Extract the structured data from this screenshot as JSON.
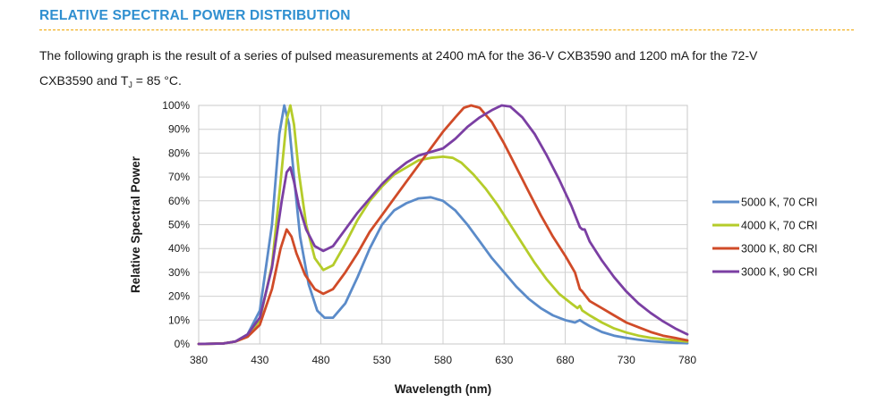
{
  "header": {
    "title": "RELATIVE SPECTRAL POWER DISTRIBUTION",
    "title_color": "#2f8fd0",
    "rule_color": "#f0a500"
  },
  "intro": {
    "line1": "The following graph is the result of a series of pulsed measurements at 2400 mA for the 36-V CXB3590 and 1200 mA for the 72-V",
    "line2_prefix": "CXB3590 and T",
    "line2_sub": "J",
    "line2_suffix": " = 85 °C."
  },
  "chart_data": {
    "type": "line",
    "xlabel": "Wavelength (nm)",
    "ylabel": "Relative Spectral Power",
    "xlim": [
      380,
      780
    ],
    "ylim": [
      0,
      100
    ],
    "x_ticks": [
      "380",
      "430",
      "480",
      "530",
      "580",
      "630",
      "680",
      "730",
      "780"
    ],
    "y_ticks": [
      "0%",
      "10%",
      "20%",
      "30%",
      "40%",
      "50%",
      "60%",
      "70%",
      "80%",
      "90%",
      "100%"
    ],
    "grid": true,
    "legend_position": "right",
    "series": [
      {
        "name": "5000 K, 70 CRI",
        "color": "#5b8bc9",
        "points": [
          [
            380,
            0
          ],
          [
            400,
            0.2
          ],
          [
            410,
            1
          ],
          [
            420,
            4
          ],
          [
            430,
            14
          ],
          [
            440,
            50
          ],
          [
            446,
            88
          ],
          [
            450,
            100
          ],
          [
            454,
            92
          ],
          [
            458,
            70
          ],
          [
            463,
            45
          ],
          [
            470,
            25
          ],
          [
            477,
            14
          ],
          [
            483,
            11
          ],
          [
            490,
            11
          ],
          [
            500,
            17
          ],
          [
            510,
            28
          ],
          [
            520,
            40
          ],
          [
            530,
            50
          ],
          [
            540,
            56
          ],
          [
            550,
            59
          ],
          [
            560,
            61
          ],
          [
            570,
            61.5
          ],
          [
            580,
            60
          ],
          [
            590,
            56
          ],
          [
            600,
            50
          ],
          [
            610,
            43
          ],
          [
            620,
            36
          ],
          [
            630,
            30
          ],
          [
            640,
            24
          ],
          [
            650,
            19
          ],
          [
            660,
            15
          ],
          [
            670,
            12
          ],
          [
            680,
            10
          ],
          [
            688,
            9
          ],
          [
            692,
            10
          ],
          [
            695,
            9
          ],
          [
            700,
            7.5
          ],
          [
            710,
            5
          ],
          [
            720,
            3.5
          ],
          [
            730,
            2.5
          ],
          [
            740,
            1.8
          ],
          [
            750,
            1.2
          ],
          [
            760,
            0.8
          ],
          [
            770,
            0.5
          ],
          [
            780,
            0.3
          ]
        ]
      },
      {
        "name": "4000 K, 70 CRI",
        "color": "#b5cc2a",
        "points": [
          [
            380,
            0
          ],
          [
            400,
            0.2
          ],
          [
            410,
            1
          ],
          [
            420,
            3
          ],
          [
            430,
            10
          ],
          [
            440,
            33
          ],
          [
            447,
            68
          ],
          [
            452,
            94
          ],
          [
            455,
            100
          ],
          [
            458,
            92
          ],
          [
            462,
            72
          ],
          [
            468,
            50
          ],
          [
            475,
            36
          ],
          [
            482,
            31
          ],
          [
            490,
            33
          ],
          [
            500,
            42
          ],
          [
            510,
            52
          ],
          [
            520,
            60
          ],
          [
            530,
            66
          ],
          [
            540,
            71
          ],
          [
            550,
            74
          ],
          [
            560,
            77
          ],
          [
            570,
            78
          ],
          [
            580,
            78.5
          ],
          [
            588,
            78
          ],
          [
            595,
            76
          ],
          [
            605,
            71
          ],
          [
            615,
            65
          ],
          [
            625,
            58
          ],
          [
            635,
            50
          ],
          [
            645,
            42
          ],
          [
            655,
            34
          ],
          [
            665,
            27
          ],
          [
            675,
            21
          ],
          [
            685,
            17
          ],
          [
            690,
            15
          ],
          [
            692,
            16
          ],
          [
            694,
            14
          ],
          [
            700,
            12
          ],
          [
            710,
            9
          ],
          [
            720,
            6.5
          ],
          [
            730,
            4.8
          ],
          [
            740,
            3.5
          ],
          [
            750,
            2.6
          ],
          [
            760,
            2
          ],
          [
            770,
            1.5
          ],
          [
            780,
            1
          ]
        ]
      },
      {
        "name": "3000 K, 80 CRI",
        "color": "#d04b28",
        "points": [
          [
            380,
            0
          ],
          [
            400,
            0.2
          ],
          [
            410,
            1
          ],
          [
            420,
            3
          ],
          [
            430,
            8
          ],
          [
            440,
            23
          ],
          [
            447,
            40
          ],
          [
            452,
            48
          ],
          [
            456,
            45
          ],
          [
            460,
            38
          ],
          [
            467,
            29
          ],
          [
            475,
            23
          ],
          [
            482,
            21
          ],
          [
            490,
            23
          ],
          [
            500,
            30
          ],
          [
            510,
            38
          ],
          [
            520,
            47
          ],
          [
            530,
            54
          ],
          [
            540,
            61
          ],
          [
            550,
            68
          ],
          [
            560,
            75
          ],
          [
            570,
            82
          ],
          [
            580,
            89
          ],
          [
            590,
            95
          ],
          [
            597,
            99
          ],
          [
            603,
            100
          ],
          [
            610,
            99
          ],
          [
            620,
            93
          ],
          [
            630,
            84
          ],
          [
            640,
            74
          ],
          [
            650,
            64
          ],
          [
            660,
            54
          ],
          [
            670,
            45
          ],
          [
            680,
            37
          ],
          [
            688,
            30
          ],
          [
            692,
            23
          ],
          [
            694,
            22
          ],
          [
            697,
            20
          ],
          [
            700,
            18
          ],
          [
            710,
            15
          ],
          [
            720,
            12
          ],
          [
            730,
            9
          ],
          [
            740,
            7
          ],
          [
            750,
            5
          ],
          [
            760,
            3.5
          ],
          [
            770,
            2.5
          ],
          [
            780,
            1.5
          ]
        ]
      },
      {
        "name": "3000 K, 90 CRI",
        "color": "#7b3fa3",
        "points": [
          [
            380,
            0
          ],
          [
            400,
            0.2
          ],
          [
            410,
            1
          ],
          [
            420,
            4
          ],
          [
            430,
            11
          ],
          [
            440,
            32
          ],
          [
            448,
            60
          ],
          [
            452,
            72
          ],
          [
            455,
            74
          ],
          [
            458,
            68
          ],
          [
            462,
            58
          ],
          [
            468,
            48
          ],
          [
            475,
            41
          ],
          [
            482,
            39
          ],
          [
            490,
            41
          ],
          [
            500,
            48
          ],
          [
            510,
            55
          ],
          [
            520,
            61
          ],
          [
            530,
            67
          ],
          [
            540,
            72
          ],
          [
            550,
            76
          ],
          [
            560,
            79
          ],
          [
            570,
            80.5
          ],
          [
            580,
            82
          ],
          [
            590,
            86
          ],
          [
            600,
            91
          ],
          [
            610,
            95
          ],
          [
            620,
            98
          ],
          [
            628,
            100
          ],
          [
            635,
            99.5
          ],
          [
            645,
            95
          ],
          [
            655,
            88
          ],
          [
            665,
            79
          ],
          [
            675,
            69
          ],
          [
            685,
            58
          ],
          [
            692,
            49
          ],
          [
            694,
            48
          ],
          [
            696,
            48
          ],
          [
            700,
            43
          ],
          [
            710,
            35
          ],
          [
            720,
            28
          ],
          [
            730,
            22
          ],
          [
            740,
            17
          ],
          [
            750,
            13
          ],
          [
            760,
            9.5
          ],
          [
            770,
            6.5
          ],
          [
            780,
            4
          ]
        ]
      }
    ]
  }
}
